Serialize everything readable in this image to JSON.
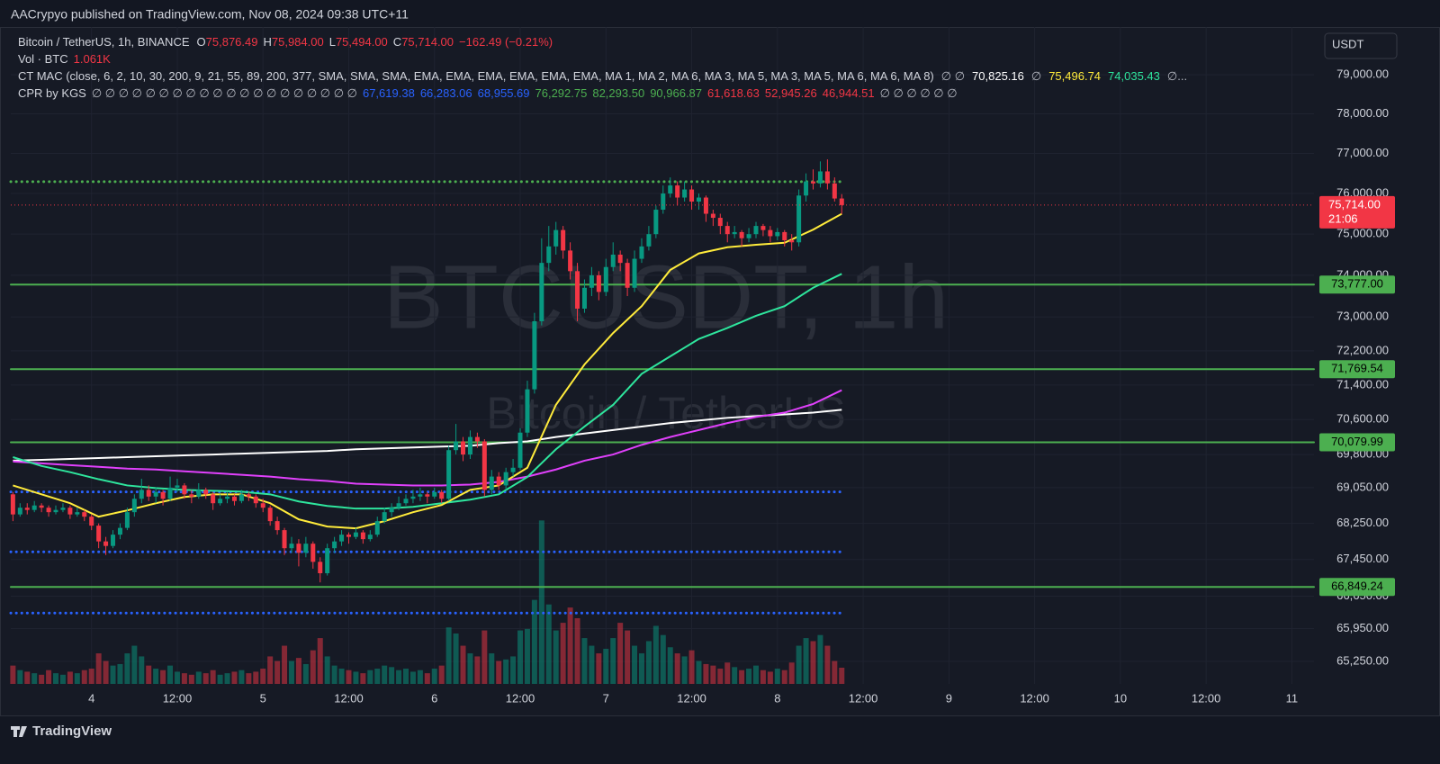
{
  "header": {
    "publisher": "AACrypyo published on TradingView.com, Nov 08, 2024 09:38 UTC+11",
    "currency_button": "USDT",
    "brand": "TradingView"
  },
  "legend": {
    "symbol": "Bitcoin / TetherUS, 1h, BINANCE",
    "ohlc": [
      {
        "key": "O",
        "value": "75,876.49"
      },
      {
        "key": "H",
        "value": "75,984.00"
      },
      {
        "key": "L",
        "value": "75,494.00"
      },
      {
        "key": "C",
        "value": "75,714.00"
      }
    ],
    "change": "−162.49 (−0.21%)",
    "volume_name": "Vol · BTC",
    "volume_value": "1.061K",
    "mac_name": "CT MAC (close, 6, 2, 10, 30, 200, 9, 21, 55, 89, 200, 377, SMA, SMA, SMA, EMA, EMA, EMA, EMA, EMA, EMA, MA 1, MA 2, MA 6, MA 3, MA 5, MA 3, MA 5, MA 6, MA 6, MA 8)",
    "mac_values": [
      {
        "text": "∅ ∅",
        "color": "#b2b5be"
      },
      {
        "text": "70,825.16",
        "color": "#ffffff"
      },
      {
        "text": "∅",
        "color": "#b2b5be"
      },
      {
        "text": "75,496.74",
        "color": "#ffeb3b"
      },
      {
        "text": "74,035.43",
        "color": "#2ee59d"
      },
      {
        "text": "∅...",
        "color": "#b2b5be"
      }
    ],
    "cpr_name": "CPR by KGS",
    "cpr_values": [
      {
        "text": "∅ ∅ ∅ ∅ ∅ ∅ ∅ ∅ ∅ ∅ ∅ ∅ ∅ ∅ ∅ ∅ ∅ ∅ ∅ ∅",
        "color": "#b2b5be"
      },
      {
        "text": "67,619.38",
        "color": "#2962ff"
      },
      {
        "text": "66,283.06",
        "color": "#2962ff"
      },
      {
        "text": "68,955.69",
        "color": "#2962ff"
      },
      {
        "text": "76,292.75",
        "color": "#4caf50"
      },
      {
        "text": "82,293.50",
        "color": "#4caf50"
      },
      {
        "text": "90,966.87",
        "color": "#4caf50"
      },
      {
        "text": "61,618.63",
        "color": "#f23645"
      },
      {
        "text": "52,945.26",
        "color": "#f23645"
      },
      {
        "text": "46,944.51",
        "color": "#f23645"
      },
      {
        "text": "∅ ∅ ∅ ∅ ∅ ∅",
        "color": "#b2b5be"
      }
    ]
  },
  "chart_data": {
    "type": "candlestick",
    "log": true,
    "grid": true,
    "watermark": {
      "symbol": "BTCUSDT, 1h",
      "description": "Bitcoin / TetherUS"
    },
    "up_color": "#089981",
    "down_color": "#f23645",
    "xlim": [
      -0.3,
      182.1
    ],
    "xticks": [
      {
        "value": 11,
        "label": "4"
      },
      {
        "value": 23,
        "label": "12:00"
      },
      {
        "value": 35,
        "label": "5"
      },
      {
        "value": 47,
        "label": "12:00"
      },
      {
        "value": 59,
        "label": "6"
      },
      {
        "value": 71,
        "label": "12:00"
      },
      {
        "value": 83,
        "label": "7"
      },
      {
        "value": 95,
        "label": "12:00"
      },
      {
        "value": 107,
        "label": "8"
      },
      {
        "value": 119,
        "label": "12:00"
      },
      {
        "value": 131,
        "label": "9"
      },
      {
        "value": 143,
        "label": "12:00"
      },
      {
        "value": 155,
        "label": "10"
      },
      {
        "value": 167,
        "label": "12:00"
      },
      {
        "value": 179,
        "label": "11"
      }
    ],
    "ylim": [
      64770,
      80240
    ],
    "yticks": [
      {
        "value": 79000,
        "label": "79,000.00"
      },
      {
        "value": 78000,
        "label": "78,000.00"
      },
      {
        "value": 77000,
        "label": "77,000.00"
      },
      {
        "value": 76000,
        "label": "76,000.00"
      },
      {
        "value": 75000,
        "label": "75,000.00"
      },
      {
        "value": 74000,
        "label": "74,000.00"
      },
      {
        "value": 73000,
        "label": "73,000.00"
      },
      {
        "value": 72200,
        "label": "72,200.00"
      },
      {
        "value": 71400,
        "label": "71,400.00"
      },
      {
        "value": 70600,
        "label": "70,600.00"
      },
      {
        "value": 69800,
        "label": "69,800.00"
      },
      {
        "value": 69050,
        "label": "69,050.00"
      },
      {
        "value": 68250,
        "label": "68,250.00"
      },
      {
        "value": 67450,
        "label": "67,450.00"
      },
      {
        "value": 66650,
        "label": "66,650.00"
      },
      {
        "value": 65950,
        "label": "65,950.00"
      },
      {
        "value": 65250,
        "label": "65,250.00"
      }
    ],
    "y2lim": [
      0,
      43000
    ],
    "candles": [
      [
        68900,
        68950,
        68300,
        68450
      ],
      [
        68450,
        68700,
        68400,
        68600
      ],
      [
        68600,
        68700,
        68450,
        68550
      ],
      [
        68550,
        68750,
        68500,
        68650
      ],
      [
        68650,
        68700,
        68500,
        68600
      ],
      [
        68600,
        68650,
        68400,
        68500
      ],
      [
        68500,
        68650,
        68450,
        68550
      ],
      [
        68550,
        68700,
        68500,
        68600
      ],
      [
        68600,
        68650,
        68350,
        68450
      ],
      [
        68450,
        68600,
        68400,
        68500
      ],
      [
        68500,
        68550,
        68300,
        68400
      ],
      [
        68400,
        68450,
        68100,
        68200
      ],
      [
        68200,
        68250,
        67700,
        67850
      ],
      [
        67850,
        67950,
        67550,
        67750
      ],
      [
        67750,
        68100,
        67700,
        68000
      ],
      [
        68000,
        68250,
        67900,
        68150
      ],
      [
        68150,
        68600,
        68100,
        68500
      ],
      [
        68500,
        68900,
        68400,
        68800
      ],
      [
        68800,
        69250,
        68700,
        69000
      ],
      [
        69000,
        69100,
        68750,
        68850
      ],
      [
        68850,
        69050,
        68700,
        68950
      ],
      [
        68950,
        69000,
        68650,
        68800
      ],
      [
        68800,
        69300,
        68750,
        69050
      ],
      [
        69050,
        69250,
        68950,
        69100
      ],
      [
        69100,
        69150,
        68800,
        68900
      ],
      [
        68900,
        69000,
        68700,
        68850
      ],
      [
        68850,
        69150,
        68800,
        69000
      ],
      [
        69000,
        69050,
        68800,
        68900
      ],
      [
        68900,
        68950,
        68550,
        68700
      ],
      [
        68700,
        68900,
        68650,
        68800
      ],
      [
        68800,
        68950,
        68700,
        68850
      ],
      [
        68850,
        68900,
        68650,
        68750
      ],
      [
        68750,
        69000,
        68700,
        68900
      ],
      [
        68900,
        68950,
        68750,
        68850
      ],
      [
        68850,
        68900,
        68600,
        68700
      ],
      [
        68700,
        68800,
        68500,
        68600
      ],
      [
        68600,
        68650,
        68200,
        68300
      ],
      [
        68300,
        68400,
        68000,
        68100
      ],
      [
        68100,
        68150,
        67550,
        67700
      ],
      [
        67700,
        67950,
        67600,
        67800
      ],
      [
        67800,
        67900,
        67300,
        67600
      ],
      [
        67600,
        67950,
        67500,
        67800
      ],
      [
        67800,
        67850,
        67250,
        67400
      ],
      [
        67400,
        67500,
        66950,
        67150
      ],
      [
        67150,
        67800,
        67100,
        67700
      ],
      [
        67700,
        67950,
        67600,
        67850
      ],
      [
        67850,
        68100,
        67750,
        68000
      ],
      [
        68000,
        68050,
        67800,
        67950
      ],
      [
        67950,
        68150,
        67900,
        68050
      ],
      [
        68050,
        68100,
        67800,
        67900
      ],
      [
        67900,
        68100,
        67850,
        68000
      ],
      [
        68000,
        68400,
        67950,
        68300
      ],
      [
        68300,
        68600,
        68250,
        68500
      ],
      [
        68500,
        68700,
        68400,
        68600
      ],
      [
        68600,
        68850,
        68550,
        68700
      ],
      [
        68700,
        68900,
        68650,
        68800
      ],
      [
        68800,
        69000,
        68700,
        68850
      ],
      [
        68850,
        69050,
        68750,
        68900
      ],
      [
        68900,
        68950,
        68700,
        68850
      ],
      [
        68850,
        69050,
        68800,
        68950
      ],
      [
        68950,
        69000,
        68700,
        68800
      ],
      [
        68800,
        70000,
        68750,
        69900
      ],
      [
        69900,
        70500,
        69800,
        70100
      ],
      [
        70100,
        70200,
        69650,
        69800
      ],
      [
        69800,
        70350,
        69700,
        70200
      ],
      [
        70200,
        70300,
        69950,
        70100
      ],
      [
        70100,
        70150,
        68850,
        69000
      ],
      [
        69000,
        69450,
        68900,
        69300
      ],
      [
        69300,
        69400,
        69000,
        69100
      ],
      [
        69100,
        69500,
        69000,
        69400
      ],
      [
        69400,
        69700,
        69300,
        69500
      ],
      [
        69500,
        70400,
        69450,
        70300
      ],
      [
        70300,
        71500,
        70200,
        71300
      ],
      [
        71300,
        73100,
        71200,
        72900
      ],
      [
        72900,
        74900,
        72800,
        74300
      ],
      [
        74300,
        75200,
        74100,
        74700
      ],
      [
        74700,
        75300,
        74500,
        75100
      ],
      [
        75100,
        75200,
        74400,
        74600
      ],
      [
        74600,
        74800,
        73900,
        74100
      ],
      [
        74100,
        74300,
        72900,
        73200
      ],
      [
        73200,
        73900,
        73100,
        73700
      ],
      [
        73700,
        74200,
        73500,
        74000
      ],
      [
        74000,
        74100,
        73400,
        73600
      ],
      [
        73600,
        74400,
        73500,
        74200
      ],
      [
        74200,
        74800,
        74100,
        74500
      ],
      [
        74500,
        74600,
        74100,
        74300
      ],
      [
        74300,
        74400,
        73500,
        73700
      ],
      [
        73700,
        74600,
        73600,
        74400
      ],
      [
        74400,
        74900,
        74300,
        74700
      ],
      [
        74700,
        75200,
        74600,
        75000
      ],
      [
        75000,
        75700,
        74900,
        75600
      ],
      [
        75600,
        76200,
        75500,
        76000
      ],
      [
        76000,
        76400,
        75900,
        76200
      ],
      [
        76200,
        76300,
        75700,
        75900
      ],
      [
        75900,
        76300,
        75800,
        76100
      ],
      [
        76100,
        76200,
        75600,
        75800
      ],
      [
        75800,
        76000,
        75600,
        75900
      ],
      [
        75900,
        75950,
        75300,
        75500
      ],
      [
        75500,
        75600,
        75200,
        75400
      ],
      [
        75400,
        75500,
        75000,
        75200
      ],
      [
        75200,
        75300,
        74800,
        75000
      ],
      [
        75000,
        75200,
        74900,
        75050
      ],
      [
        75050,
        75100,
        74700,
        74900
      ],
      [
        74900,
        75150,
        74800,
        75000
      ],
      [
        75000,
        75300,
        74900,
        75200
      ],
      [
        75200,
        75250,
        74950,
        75100
      ],
      [
        75100,
        75200,
        74800,
        74950
      ],
      [
        74950,
        75150,
        74850,
        75050
      ],
      [
        75050,
        75100,
        74700,
        74850
      ],
      [
        74850,
        75000,
        74600,
        74800
      ],
      [
        74800,
        76100,
        74700,
        75950
      ],
      [
        75950,
        76500,
        75800,
        76300
      ],
      [
        76300,
        76600,
        76100,
        76250
      ],
      [
        76250,
        76800,
        76150,
        76550
      ],
      [
        76550,
        76850,
        76100,
        76250
      ],
      [
        76250,
        76400,
        75800,
        75876.49
      ],
      [
        75876.49,
        75984,
        75494,
        75714
      ]
    ],
    "volume": [
      1200,
      900,
      800,
      700,
      600,
      900,
      700,
      600,
      800,
      700,
      900,
      1000,
      2000,
      1500,
      1200,
      1300,
      2000,
      2500,
      1800,
      1200,
      1000,
      900,
      1200,
      800,
      700,
      600,
      800,
      700,
      900,
      600,
      700,
      800,
      900,
      700,
      800,
      1000,
      1800,
      1500,
      2500,
      1500,
      1700,
      1300,
      2200,
      3000,
      1800,
      1200,
      1000,
      900,
      800,
      700,
      900,
      1000,
      1200,
      1100,
      900,
      1000,
      800,
      900,
      700,
      1000,
      1200,
      3700,
      3300,
      2500,
      2000,
      1800,
      3500,
      2000,
      1500,
      1600,
      1800,
      3500,
      3600,
      5500,
      10700,
      5200,
      3500,
      4000,
      5000,
      4300,
      3000,
      2500,
      2000,
      2300,
      3000,
      4000,
      3500,
      2500,
      2000,
      2800,
      3800,
      3200,
      2400,
      2000,
      1800,
      2200,
      1500,
      1300,
      1200,
      1000,
      1400,
      1100,
      900,
      1000,
      1200,
      900,
      800,
      1000,
      900,
      1400,
      2500,
      3000,
      2800,
      3200,
      2500,
      1500,
      1061
    ],
    "series_x": [
      0,
      4,
      8,
      12,
      16,
      20,
      24,
      28,
      32,
      36,
      40,
      44,
      48,
      52,
      56,
      60,
      64,
      68,
      72,
      76,
      80,
      84,
      88,
      92,
      96,
      100,
      104,
      108,
      112,
      116
    ],
    "series": [
      {
        "color": "#ffffff",
        "values": [
          69660,
          69680,
          69700,
          69720,
          69740,
          69760,
          69780,
          69800,
          69820,
          69840,
          69860,
          69880,
          69920,
          69940,
          69960,
          69980,
          70000,
          70060,
          70100,
          70200,
          70280,
          70360,
          70440,
          70520,
          70580,
          70640,
          70680,
          70720,
          70760,
          70825.16
        ]
      },
      {
        "color": "#e040fb",
        "values": [
          69640,
          69600,
          69560,
          69520,
          69480,
          69460,
          69420,
          69380,
          69340,
          69300,
          69240,
          69200,
          69140,
          69120,
          69100,
          69100,
          69120,
          69180,
          69300,
          69460,
          69660,
          69800,
          70020,
          70200,
          70360,
          70520,
          70660,
          70760,
          70960,
          71280
        ]
      },
      {
        "color": "#2ee59d",
        "values": [
          69740,
          69540,
          69400,
          69240,
          69100,
          69040,
          69000,
          68980,
          68960,
          68900,
          68740,
          68640,
          68580,
          68580,
          68620,
          68700,
          68780,
          68900,
          69290,
          69920,
          70440,
          70940,
          71660,
          72070,
          72480,
          72740,
          73030,
          73260,
          73700,
          74035.43
        ]
      },
      {
        "color": "#ffeb3b",
        "values": [
          69100,
          68900,
          68700,
          68400,
          68540,
          68700,
          68840,
          68900,
          68900,
          68700,
          68340,
          68180,
          68140,
          68300,
          68500,
          68660,
          69000,
          69100,
          69500,
          70940,
          71880,
          72620,
          73260,
          74130,
          74530,
          74680,
          74740,
          74790,
          75110,
          75496.74
        ]
      }
    ],
    "levels": [
      {
        "value": 76292.75,
        "color": "#4caf50",
        "style": "dotted"
      },
      {
        "value": 68955.69,
        "color": "#2962ff",
        "style": "dotted"
      },
      {
        "value": 67619.38,
        "color": "#2962ff",
        "style": "dotted"
      },
      {
        "value": 66283.06,
        "color": "#2962ff",
        "style": "dotted"
      },
      {
        "value": 73777,
        "label": "73,777.00",
        "color": "#4caf50",
        "style": "solid"
      },
      {
        "value": 71769.54,
        "label": "71,769.54",
        "color": "#4caf50",
        "style": "solid"
      },
      {
        "value": 70079.99,
        "label": "70,079.99",
        "color": "#4caf50",
        "style": "solid"
      },
      {
        "value": 66849.24,
        "label": "66,849.24",
        "color": "#4caf50",
        "style": "solid"
      }
    ],
    "last": {
      "label": "75,714.00",
      "countdown": "21:06",
      "color": "#f23645"
    }
  }
}
